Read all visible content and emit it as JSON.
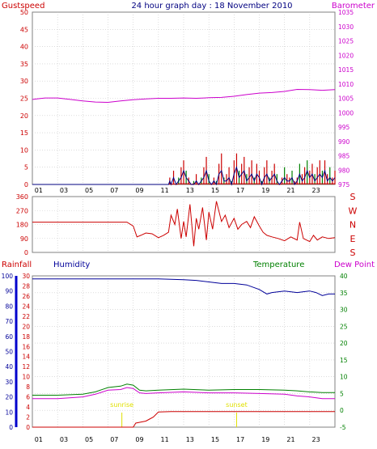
{
  "header": {
    "title": "24 hour graph day : 18 November 2010",
    "left_label": "Gustspeed",
    "right_label": "Barometer"
  },
  "colors": {
    "background": "#ffffff",
    "frame": "#808080",
    "grid": "#c8c8c8",
    "gust": "#cc0000",
    "wind": "#000080",
    "barometer": "#cc00cc",
    "direction": "#cc0000",
    "rain": "#cc0000",
    "humidity": "#000099",
    "temperature": "#008000",
    "dewpoint": "#cc00cc",
    "sun_marker": "#e0e000",
    "axis_blue": "#0000cc"
  },
  "chart_data": [
    {
      "type": "line",
      "panel": "wind-barometer",
      "xlabel": "",
      "x_ticks": [
        "01",
        "03",
        "05",
        "07",
        "09",
        "11",
        "13",
        "15",
        "17",
        "19",
        "21",
        "23"
      ],
      "xlim": [
        0,
        24
      ],
      "y_left": {
        "label": "Gustspeed",
        "ticks": [
          0,
          5,
          10,
          15,
          20,
          25,
          30,
          35,
          40,
          45,
          50
        ],
        "ylim": [
          0,
          50
        ]
      },
      "y_right": {
        "label": "Barometer",
        "ticks": [
          975,
          980,
          985,
          990,
          995,
          1000,
          1005,
          1010,
          1015,
          1020,
          1025,
          1030,
          1035
        ],
        "ylim": [
          975,
          1035
        ]
      },
      "grid": true,
      "series": [
        {
          "name": "Barometer",
          "axis": "right",
          "x": [
            0,
            1,
            2,
            3,
            4,
            5,
            6,
            7,
            8,
            9,
            10,
            11,
            12,
            13,
            14,
            15,
            16,
            17,
            18,
            19,
            20,
            21,
            22,
            23,
            24
          ],
          "values": [
            1004.6,
            1005.1,
            1005.1,
            1004.6,
            1004.1,
            1003.7,
            1003.6,
            1004.1,
            1004.5,
            1004.8,
            1005.0,
            1005.0,
            1005.1,
            1005.0,
            1005.2,
            1005.3,
            1005.7,
            1006.3,
            1006.8,
            1007.0,
            1007.4,
            1008.1,
            1008.0,
            1007.8,
            1008.0
          ]
        },
        {
          "name": "Gust",
          "axis": "left",
          "x": [
            0,
            10.8,
            10.9,
            11.0,
            11.2,
            11.4,
            11.6,
            11.8,
            12.0,
            12.2,
            12.4,
            12.6,
            12.8,
            13.0,
            13.2,
            13.4,
            13.6,
            13.8,
            14.0,
            14.2,
            14.4,
            14.6,
            14.8,
            15.0,
            15.2,
            15.4,
            15.6,
            15.8,
            16.0,
            16.2,
            16.4,
            16.6,
            16.8,
            17.0,
            17.2,
            17.4,
            17.6,
            17.8,
            18.0,
            18.2,
            18.4,
            18.6,
            18.8,
            19.0,
            19.2,
            19.4,
            19.6,
            19.8,
            20.0,
            20.2,
            20.4,
            20.6,
            20.8,
            21.0,
            21.2,
            21.4,
            21.6,
            21.8,
            22.0,
            22.2,
            22.4,
            22.6,
            22.8,
            23.0,
            23.2,
            23.4,
            23.6,
            23.8,
            24.0
          ],
          "values": [
            0,
            0,
            2,
            0,
            4,
            0,
            2,
            5,
            7,
            4,
            2,
            0,
            1,
            3,
            0,
            2,
            5,
            8,
            3,
            0,
            2,
            1,
            6,
            9,
            2,
            3,
            5,
            1,
            7,
            9,
            4,
            6,
            8,
            3,
            5,
            7,
            2,
            6,
            4,
            1,
            5,
            7,
            2,
            4,
            6,
            3,
            0,
            2,
            5,
            3,
            2,
            4,
            1,
            2,
            6,
            3,
            5,
            7,
            4,
            6,
            3,
            5,
            7,
            4,
            7,
            3,
            5,
            2,
            4
          ]
        },
        {
          "name": "Wind",
          "axis": "left",
          "x": [
            0,
            10.8,
            10.9,
            11.0,
            11.2,
            11.4,
            11.6,
            11.8,
            12.0,
            12.2,
            12.4,
            12.6,
            12.8,
            13.0,
            13.2,
            13.4,
            13.6,
            13.8,
            14.0,
            14.2,
            14.4,
            14.6,
            14.8,
            15.0,
            15.2,
            15.4,
            15.6,
            15.8,
            16.0,
            16.2,
            16.4,
            16.6,
            16.8,
            17.0,
            17.2,
            17.4,
            17.6,
            17.8,
            18.0,
            18.2,
            18.4,
            18.6,
            18.8,
            19.0,
            19.2,
            19.4,
            19.6,
            19.8,
            20.0,
            20.2,
            20.4,
            20.6,
            20.8,
            21.0,
            21.2,
            21.4,
            21.6,
            21.8,
            22.0,
            22.2,
            22.4,
            22.6,
            22.8,
            23.0,
            23.2,
            23.4,
            23.6,
            23.8,
            24.0
          ],
          "values": [
            0,
            0,
            1,
            0,
            2,
            0,
            1,
            2,
            4,
            2,
            1,
            0,
            0,
            1,
            0,
            1,
            2,
            4,
            1,
            0,
            1,
            0,
            3,
            4,
            1,
            1,
            2,
            0,
            3,
            5,
            2,
            3,
            4,
            1,
            2,
            3,
            1,
            3,
            2,
            0,
            2,
            3,
            1,
            2,
            3,
            1,
            0,
            1,
            2,
            1,
            1,
            2,
            0,
            1,
            3,
            1,
            2,
            4,
            2,
            3,
            1,
            2,
            3,
            2,
            4,
            1,
            2,
            1,
            2
          ]
        }
      ]
    },
    {
      "type": "line",
      "panel": "wind-direction",
      "xlim": [
        0,
        24
      ],
      "y_left": {
        "ticks": [
          0,
          90,
          180,
          270,
          360
        ],
        "ylim": [
          0,
          360
        ]
      },
      "y_right": {
        "ticks": [
          "S",
          "E",
          "N",
          "W",
          "S"
        ]
      },
      "grid": true,
      "series": [
        {
          "name": "Wind direction",
          "x": [
            0,
            2,
            4,
            6,
            7.5,
            8.0,
            8.3,
            8.6,
            9.0,
            9.5,
            10.0,
            10.4,
            10.8,
            11.0,
            11.3,
            11.5,
            11.8,
            12.0,
            12.2,
            12.5,
            12.8,
            13.0,
            13.2,
            13.5,
            13.8,
            14.0,
            14.3,
            14.6,
            15.0,
            15.3,
            15.6,
            16.0,
            16.3,
            16.6,
            17.0,
            17.3,
            17.6,
            18.0,
            18.3,
            18.6,
            19.0,
            19.5,
            20.0,
            20.5,
            21.0,
            21.2,
            21.5,
            22.0,
            22.3,
            22.6,
            23.0,
            23.5,
            24.0
          ],
          "values": [
            195,
            195,
            195,
            195,
            195,
            170,
            100,
            110,
            125,
            120,
            95,
            110,
            130,
            240,
            180,
            280,
            90,
            200,
            100,
            310,
            40,
            220,
            150,
            290,
            80,
            260,
            150,
            330,
            200,
            240,
            160,
            220,
            150,
            180,
            200,
            160,
            230,
            170,
            130,
            110,
            100,
            90,
            75,
            100,
            80,
            195,
            90,
            70,
            110,
            80,
            100,
            90,
            95
          ]
        }
      ]
    },
    {
      "type": "line",
      "panel": "rain-humidity-temperature",
      "x_ticks": [
        "01",
        "03",
        "05",
        "07",
        "09",
        "11",
        "13",
        "15",
        "17",
        "19",
        "21",
        "23"
      ],
      "xlim": [
        0,
        24
      ],
      "y_left_humidity": {
        "label": "Humidity",
        "ticks": [
          0,
          10,
          20,
          30,
          40,
          50,
          60,
          70,
          80,
          90,
          100
        ],
        "ylim": [
          0,
          100
        ]
      },
      "y_left_rain": {
        "label": "Rainfall",
        "ticks": [
          0,
          2,
          4,
          6,
          8,
          10,
          12,
          14,
          16,
          18,
          20,
          22,
          24,
          26,
          28,
          30
        ],
        "ylim": [
          0,
          30
        ]
      },
      "y_right": {
        "label": "Temperature",
        "ticks": [
          -5,
          0,
          5,
          10,
          15,
          20,
          25,
          30,
          35,
          40
        ],
        "ylim": [
          -5,
          40
        ]
      },
      "grid": true,
      "annotations": [
        {
          "label": "sunrise",
          "x": 7.1
        },
        {
          "label": "sunset",
          "x": 16.2
        }
      ],
      "series": [
        {
          "name": "Humidity",
          "axis": "humidity",
          "x": [
            0,
            2,
            4,
            6,
            8,
            10,
            12,
            13,
            14,
            15,
            16,
            17,
            18,
            18.6,
            19,
            20,
            21,
            22,
            22.5,
            23,
            23.5,
            24
          ],
          "values": [
            98,
            98,
            98,
            98,
            98,
            98,
            97.5,
            97,
            96,
            95,
            95,
            94,
            91,
            88,
            89,
            90,
            89,
            90,
            89,
            87,
            88,
            88
          ]
        },
        {
          "name": "Temperature",
          "axis": "right",
          "x": [
            0,
            2,
            4,
            5,
            6,
            7,
            7.5,
            8,
            8.5,
            9,
            10,
            12,
            14,
            16,
            18,
            20,
            21,
            22,
            23,
            24
          ],
          "values": [
            4.5,
            4.5,
            4.8,
            5.5,
            6.8,
            7.2,
            7.8,
            7.5,
            6.0,
            5.8,
            6.0,
            6.3,
            6.0,
            6.2,
            6.2,
            6.0,
            5.8,
            5.5,
            5.3,
            5.3
          ]
        },
        {
          "name": "Dew Point",
          "axis": "right",
          "x": [
            0,
            2,
            4,
            5,
            6,
            7,
            7.5,
            8,
            8.5,
            9,
            10,
            12,
            14,
            16,
            18,
            20,
            21,
            22,
            23,
            24
          ],
          "values": [
            3.5,
            3.5,
            4.0,
            4.8,
            6.0,
            6.2,
            6.8,
            6.5,
            5.2,
            5.0,
            5.2,
            5.5,
            5.2,
            5.2,
            5.0,
            4.8,
            4.3,
            4.0,
            3.5,
            3.5
          ]
        },
        {
          "name": "Rainfall",
          "axis": "rain",
          "x": [
            0,
            8.0,
            8.2,
            8.6,
            9.0,
            9.3,
            9.6,
            10.0,
            11.0,
            13.0,
            15.0,
            17.0,
            19.0,
            21.0,
            23.0,
            23.6,
            24.0
          ],
          "values": [
            0,
            0,
            0.8,
            1.0,
            1.2,
            1.6,
            2.0,
            3.0,
            3.1,
            3.1,
            3.1,
            3.1,
            3.1,
            3.1,
            3.1,
            3.1,
            3.1
          ]
        }
      ]
    }
  ],
  "legend": {
    "rainfall": "Rainfall",
    "humidity": "Humidity",
    "temperature": "Temperature",
    "dewpoint": "Dew Point"
  }
}
